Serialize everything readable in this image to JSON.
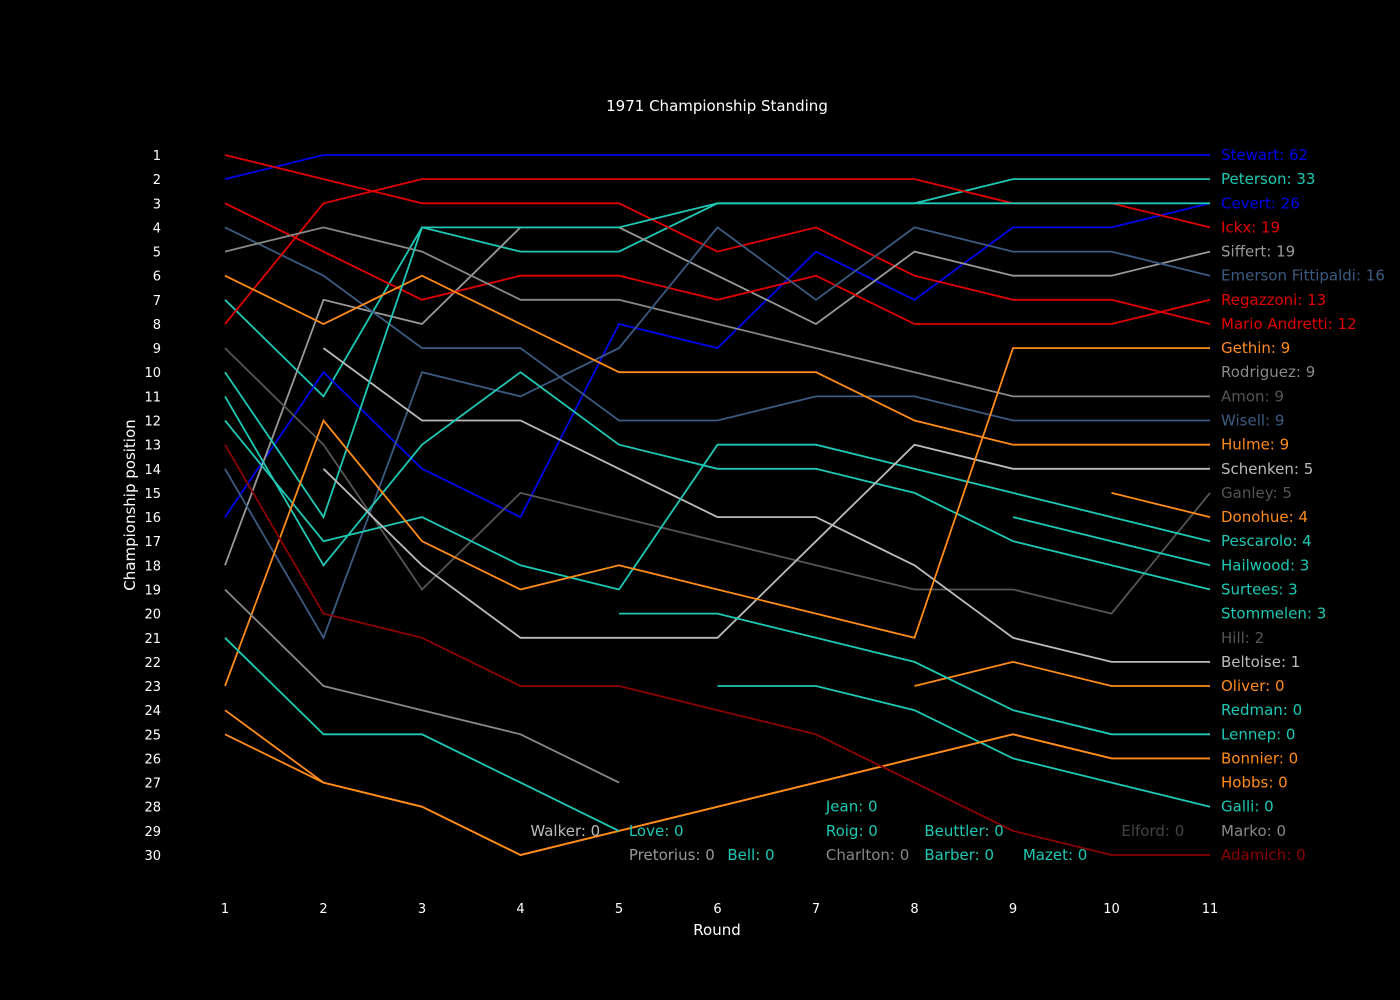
{
  "chart_data": {
    "type": "line",
    "title": "1971 Championship Standing",
    "xlabel": "Round",
    "ylabel": "Championship position",
    "x": [
      1,
      2,
      3,
      4,
      5,
      6,
      7,
      8,
      9,
      10,
      11
    ],
    "y_ticks": [
      1,
      2,
      3,
      4,
      5,
      6,
      7,
      8,
      9,
      10,
      11,
      12,
      13,
      14,
      15,
      16,
      17,
      18,
      19,
      20,
      21,
      22,
      23,
      24,
      25,
      26,
      27,
      28,
      29,
      30
    ],
    "xlim": [
      1,
      11
    ],
    "ylim": [
      30,
      1
    ],
    "y_reversed": true,
    "grid": false,
    "background": "#000000",
    "series": [
      {
        "name": "Stewart",
        "points": 62,
        "label": "Stewart: 62",
        "color": "#0000ee",
        "values": [
          2,
          1,
          1,
          1,
          1,
          1,
          1,
          1,
          1,
          1,
          1
        ]
      },
      {
        "name": "Peterson",
        "points": 33,
        "label": "Peterson: 33",
        "color": "#1ec8b4",
        "values": [
          7,
          11,
          4,
          5,
          5,
          3,
          3,
          3,
          2,
          2,
          2
        ]
      },
      {
        "name": "Cevert",
        "points": 26,
        "label": "Cevert: 26",
        "color": "#0000ee",
        "values": [
          16,
          10,
          14,
          16,
          8,
          9,
          5,
          7,
          4,
          4,
          3
        ]
      },
      {
        "name": "Ickx",
        "points": 19,
        "label": "Ickx: 19",
        "color": "#e00000",
        "values": [
          1,
          2,
          3,
          3,
          3,
          5,
          4,
          6,
          7,
          7,
          8
        ]
      },
      {
        "name": "Siffert",
        "points": 19,
        "label": "Siffert: 19",
        "color": "#999999",
        "values": [
          18,
          7,
          8,
          4,
          4,
          6,
          8,
          5,
          6,
          6,
          5
        ]
      },
      {
        "name": "Emerson Fittipaldi",
        "points": 16,
        "label": "Emerson Fittipaldi: 16",
        "color": "#3c5a80",
        "values": [
          4,
          6,
          9,
          9,
          12,
          12,
          11,
          11,
          12,
          12,
          12
        ]
      },
      {
        "name": "Regazzoni",
        "points": 13,
        "label": "Regazzoni: 13",
        "color": "#e00000",
        "values": [
          3,
          5,
          7,
          6,
          6,
          7,
          6,
          8,
          8,
          8,
          7
        ]
      },
      {
        "name": "Mario Andretti",
        "points": 12,
        "label": "Mario Andretti: 12",
        "color": "#e00000",
        "values": [
          8,
          3,
          2,
          2,
          2,
          2,
          2,
          2,
          3,
          3,
          4
        ]
      },
      {
        "name": "Gethin",
        "points": 9,
        "label": "Gethin: 9",
        "color": "#ff8c1a",
        "values": [
          25,
          27,
          28,
          30,
          29,
          28,
          27,
          26,
          25,
          26,
          26
        ]
      },
      {
        "name": "Rodriguez",
        "points": 9,
        "label": "Rodriguez: 9",
        "color": "#888888",
        "values": [
          5,
          4,
          5,
          7,
          7,
          8,
          9,
          10,
          11,
          11,
          11
        ]
      },
      {
        "name": "Amon",
        "points": 9,
        "label": "Amon: 9",
        "color": "#555555",
        "values": [
          9,
          13,
          19,
          15,
          16,
          17,
          18,
          19,
          19,
          20,
          15
        ]
      },
      {
        "name": "Wisell",
        "points": 9,
        "label": "Wisell: 9",
        "color": "#3c5a80",
        "values": [
          14,
          21,
          10,
          11,
          9,
          4,
          7,
          4,
          5,
          5,
          6
        ]
      },
      {
        "name": "Hulme",
        "points": 9,
        "label": "Hulme: 9",
        "color": "#ff8c1a",
        "values": [
          6,
          8,
          6,
          8,
          10,
          10,
          10,
          12,
          13,
          13,
          13
        ]
      },
      {
        "name": "Schenken",
        "points": 5,
        "label": "Schenken: 5",
        "color": "#bbbbbb",
        "values": [
          null,
          9,
          12,
          12,
          14,
          16,
          16,
          18,
          21,
          22,
          22
        ]
      },
      {
        "name": "Ganley",
        "points": 5,
        "label": "Ganley: 5",
        "color": "#555555",
        "values": [
          null,
          null,
          null,
          null,
          null,
          null,
          null,
          null,
          null,
          null,
          null
        ]
      },
      {
        "name": "Donohue",
        "points": 4,
        "label": "Donohue: 4",
        "color": "#ff8c1a",
        "values": [
          null,
          null,
          null,
          null,
          null,
          null,
          null,
          null,
          null,
          15,
          16
        ]
      },
      {
        "name": "Pescarolo",
        "points": 4,
        "label": "Pescarolo: 4",
        "color": "#1ec8b4",
        "values": [
          10,
          16,
          4,
          4,
          4,
          3,
          3,
          3,
          3,
          3,
          3
        ]
      },
      {
        "name": "Hailwood",
        "points": 3,
        "label": "Hailwood: 3",
        "color": "#1ec8b4",
        "values": [
          null,
          null,
          null,
          null,
          null,
          null,
          null,
          null,
          16,
          17,
          18
        ]
      },
      {
        "name": "Surtees",
        "points": 3,
        "label": "Surtees: 3",
        "color": "#1ec8b4",
        "values": [
          12,
          17,
          16,
          18,
          19,
          13,
          13,
          14,
          15,
          16,
          17
        ]
      },
      {
        "name": "Stommelen",
        "points": 3,
        "label": "Stommelen: 3",
        "color": "#1ec8b4",
        "values": [
          11,
          18,
          13,
          10,
          13,
          14,
          14,
          15,
          17,
          18,
          19
        ]
      },
      {
        "name": "Hill",
        "points": 2,
        "label": "Hill: 2",
        "color": "#555555",
        "values": [
          null,
          null,
          null,
          null,
          null,
          null,
          null,
          null,
          null,
          null,
          null
        ]
      },
      {
        "name": "Beltoise",
        "points": 1,
        "label": "Beltoise: 1",
        "color": "#bbbbbb",
        "values": [
          null,
          14,
          18,
          21,
          21,
          21,
          17,
          13,
          14,
          14,
          14
        ]
      },
      {
        "name": "Oliver",
        "points": 0,
        "label": "Oliver: 0",
        "color": "#ff8c1a",
        "values": [
          null,
          null,
          null,
          null,
          null,
          null,
          null,
          23,
          22,
          23,
          23
        ]
      },
      {
        "name": "Redman",
        "points": 0,
        "label": "Redman: 0",
        "color": "#1ec8b4",
        "values": [
          null,
          null,
          null,
          null,
          null,
          23,
          23,
          24,
          26,
          27,
          28
        ]
      },
      {
        "name": "Lennep",
        "points": 0,
        "label": "Lennep: 0",
        "color": "#1ec8b4",
        "values": [
          null,
          null,
          null,
          null,
          20,
          20,
          21,
          22,
          24,
          25,
          25
        ]
      },
      {
        "name": "Bonnier",
        "points": 0,
        "label": "Bonnier: 0",
        "color": "#ff8c1a",
        "values": [
          24,
          27,
          28,
          30,
          29,
          28,
          27,
          26,
          25,
          26,
          26
        ]
      },
      {
        "name": "Hobbs",
        "points": 0,
        "label": "Hobbs: 0",
        "color": "#ff8c1a",
        "values": [
          23,
          12,
          17,
          19,
          18,
          19,
          20,
          21,
          9,
          9,
          9
        ]
      },
      {
        "name": "Galli",
        "points": 0,
        "label": "Galli: 0",
        "color": "#1ec8b4",
        "values": [
          21,
          25,
          25,
          27,
          29,
          null,
          null,
          null,
          null,
          null,
          null
        ]
      },
      {
        "name": "Marko",
        "points": 0,
        "label": "Marko: 0",
        "color": "#888888",
        "values": [
          19,
          23,
          24,
          25,
          27,
          null,
          null,
          null,
          null,
          null,
          null
        ]
      },
      {
        "name": "Adamich",
        "points": 0,
        "label": "Adamich: 0",
        "color": "#8b0000",
        "values": [
          13,
          20,
          21,
          23,
          23,
          24,
          25,
          27,
          29,
          30,
          30
        ]
      }
    ],
    "inline_labels": [
      {
        "text": "Walker: 0",
        "color": "#bbbbbb"
      },
      {
        "text": "Love: 0",
        "color": "#1ec8b4"
      },
      {
        "text": "Pretorius: 0",
        "color": "#999999"
      },
      {
        "text": "Bell: 0",
        "color": "#1ec8b4"
      },
      {
        "text": "Jean: 0",
        "color": "#1ec8b4"
      },
      {
        "text": "Roig: 0",
        "color": "#1ec8b4"
      },
      {
        "text": "Charlton: 0",
        "color": "#888888"
      },
      {
        "text": "Beuttler: 0",
        "color": "#1ec8b4"
      },
      {
        "text": "Barber: 0",
        "color": "#1ec8b4"
      },
      {
        "text": "Mazet: 0",
        "color": "#1ec8b4"
      },
      {
        "text": "Elford: 0",
        "color": "#444444"
      }
    ]
  }
}
